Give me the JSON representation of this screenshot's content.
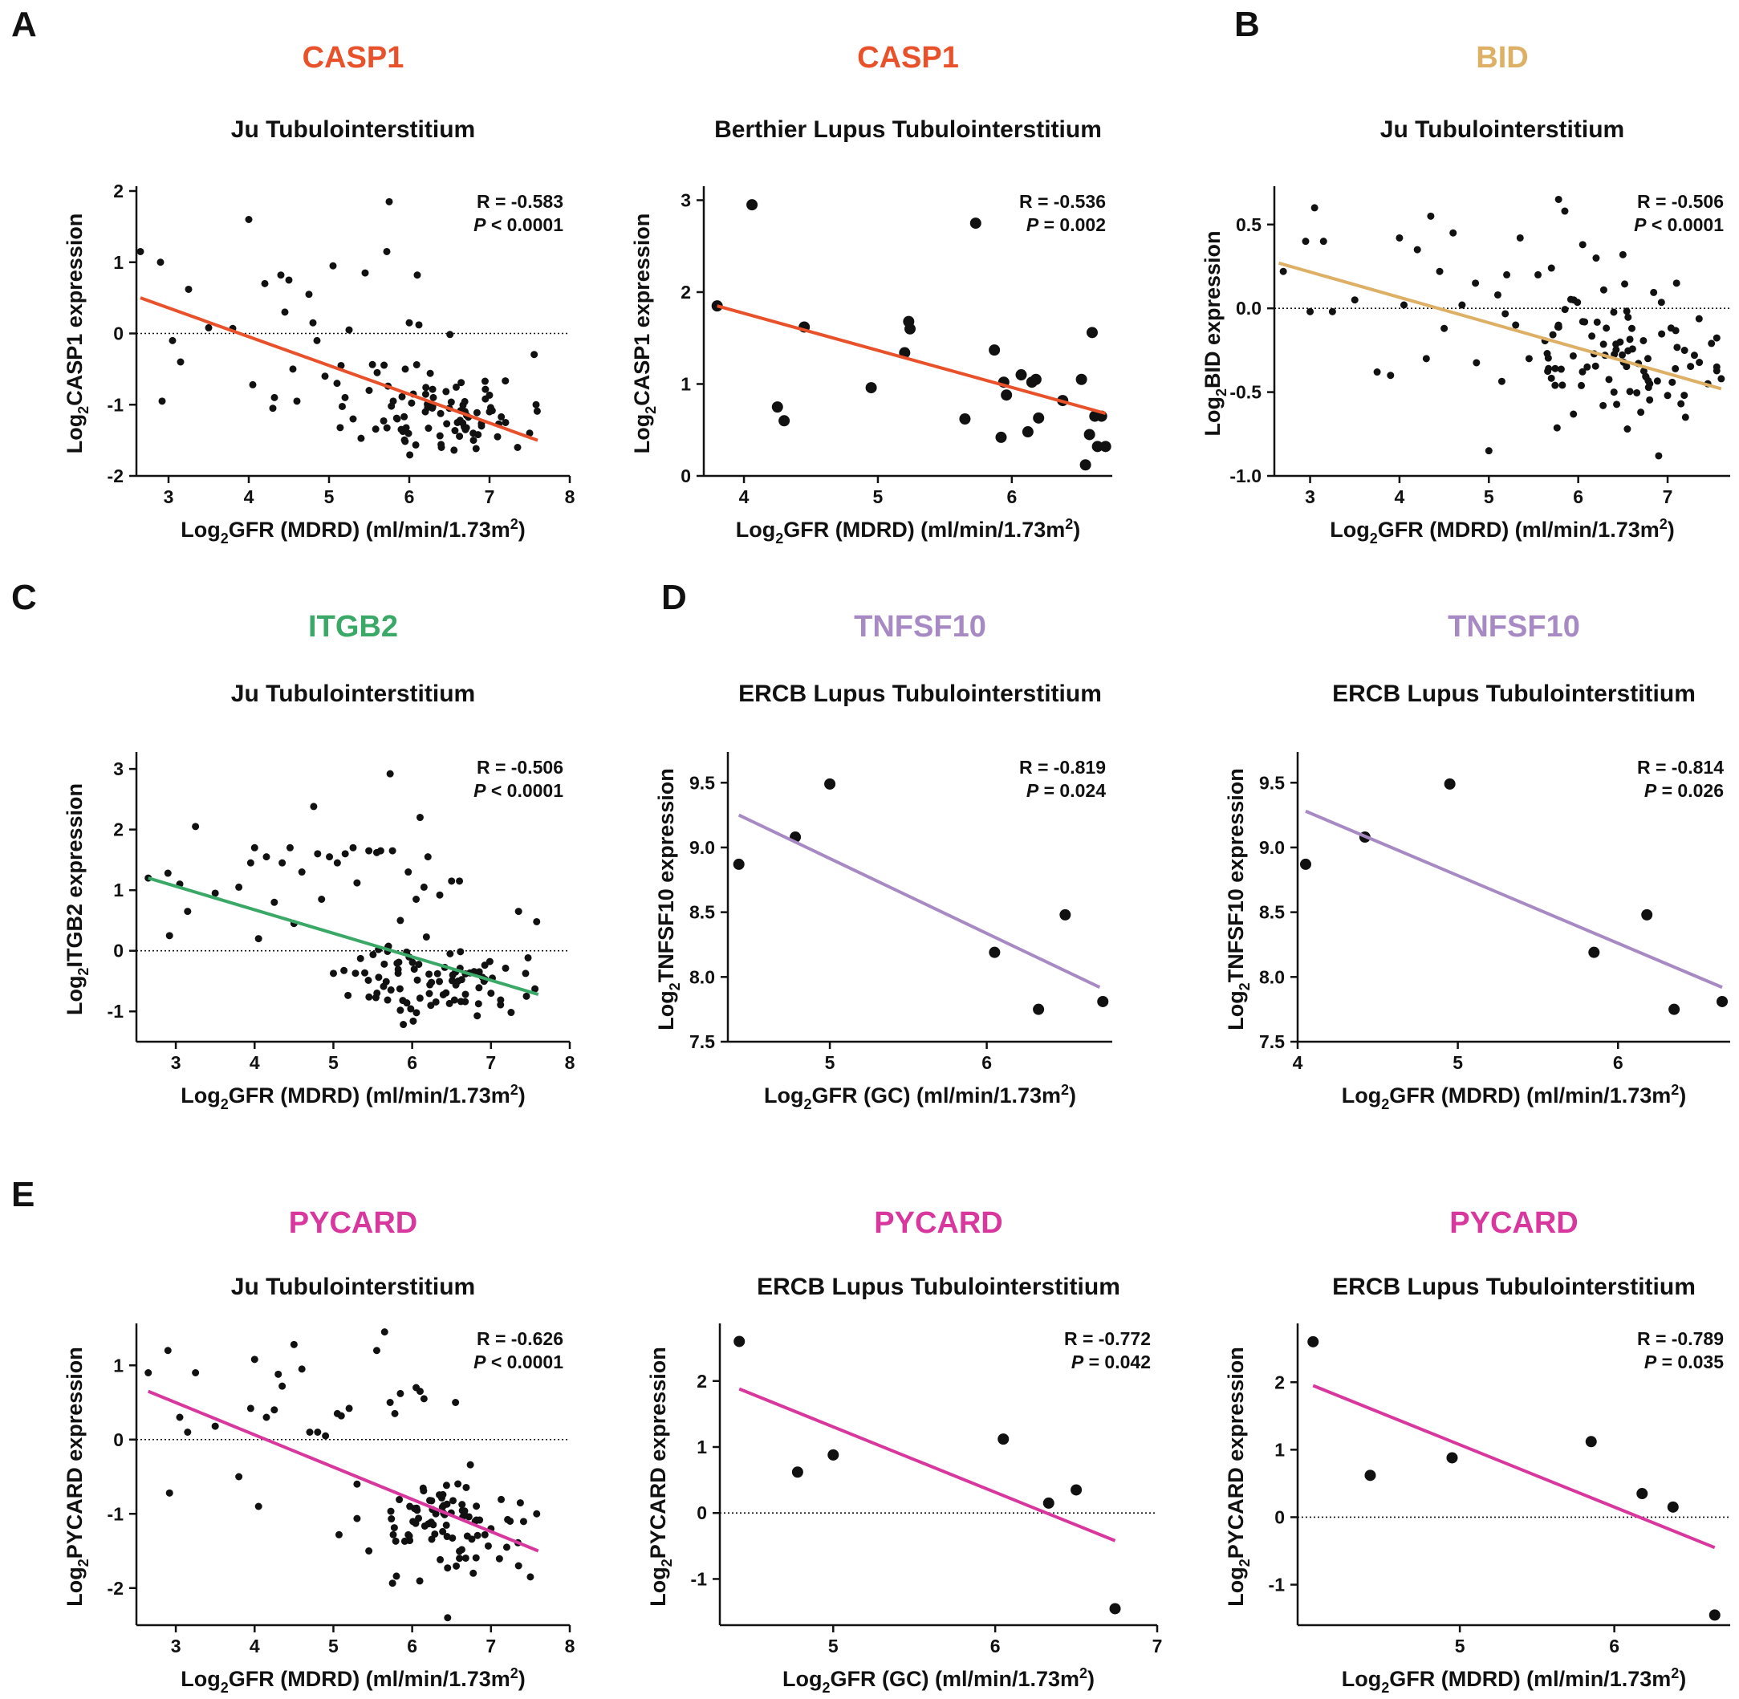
{
  "panel_letters": [
    "A",
    "B",
    "C",
    "D",
    "E"
  ],
  "colors": {
    "CASP1": "#e8512a",
    "BID": "#ddb066",
    "ITGB2": "#3aa866",
    "TNFSF10": "#a78ac4",
    "PYCARD": "#d8389e",
    "points": "#111111",
    "axis": "#111111"
  },
  "chart_data": [
    {
      "type": "scatter",
      "gene": "CASP1",
      "title": "CASP1",
      "subtitle": "Ju Tubulointerstitium",
      "ylabel_pre": "Log",
      "ylabel_sub": "2",
      "ylabel_post": "CASP1 expression",
      "xlabel_pre": "Log",
      "xlabel_sub": "2",
      "xlabel_mid": "GFR (MDRD) (ml/min/1.73m",
      "xlabel_sup": "2",
      "xlabel_post": ")",
      "stat_r": "R = -0.583",
      "stat_p_label": "P",
      "stat_p_value": "< 0.0001",
      "xlim": [
        2.6,
        8.0
      ],
      "ylim": [
        -2,
        2
      ],
      "xticks": [
        3,
        4,
        5,
        6,
        7,
        8
      ],
      "yticks": [
        -2,
        -1,
        0,
        1,
        2
      ],
      "xtick_labels": [
        "3",
        "4",
        "5",
        "6",
        "7",
        "8"
      ],
      "ytick_labels": [
        "-2",
        "-1",
        "0",
        "1",
        "2"
      ],
      "fit": [
        [
          2.65,
          0.5
        ],
        [
          7.6,
          -1.5
        ]
      ],
      "zero_line": true,
      "dense": true,
      "x": [
        2.65,
        2.9,
        2.92,
        3.05,
        3.15,
        3.25,
        3.5,
        3.8,
        4.0,
        4.05,
        4.2,
        4.3,
        4.32,
        4.4,
        4.45,
        4.5,
        4.55,
        4.6,
        4.75,
        4.8,
        4.85,
        4.95,
        5.05,
        5.1,
        5.15,
        5.2,
        5.25,
        5.3,
        5.45,
        5.5,
        5.6,
        5.72,
        5.75,
        5.8,
        5.85,
        5.95,
        6.0,
        6.05,
        6.1,
        6.12,
        6.2,
        6.3,
        6.4,
        6.5,
        6.6,
        6.7,
        6.8,
        6.9,
        7.0,
        7.1,
        7.2,
        7.35,
        7.5,
        7.58
      ],
      "y": [
        1.15,
        1.0,
        -0.95,
        -0.1,
        -0.4,
        0.62,
        0.08,
        0.07,
        1.6,
        -0.72,
        0.7,
        -1.05,
        -0.9,
        0.82,
        0.3,
        0.75,
        -0.5,
        -0.95,
        0.55,
        0.15,
        -0.1,
        -0.6,
        0.95,
        -0.7,
        -0.45,
        -0.9,
        0.05,
        -1.2,
        0.85,
        -0.8,
        -0.55,
        1.15,
        1.85,
        -0.95,
        -1.2,
        -0.5,
        0.15,
        -0.85,
        0.82,
        0.12,
        -1.1,
        -0.9,
        -1.6,
        -1.05,
        -1.25,
        -1.35,
        -1.5,
        -1.3,
        -1.1,
        -1.45,
        -1.25,
        -1.6,
        -1.4,
        -1.0
      ],
      "cluster": {
        "cx": 6.4,
        "cy": -1.05,
        "sx": 0.5,
        "sy": 0.38,
        "n": 70,
        "seed": 11
      }
    },
    {
      "type": "scatter",
      "gene": "CASP1",
      "title": "CASP1",
      "subtitle": "Berthier Lupus Tubulointerstitium",
      "ylabel_pre": "Log",
      "ylabel_sub": "2",
      "ylabel_post": "CASP1 expression",
      "xlabel_pre": "Log",
      "xlabel_sub": "2",
      "xlabel_mid": "GFR (MDRD) (ml/min/1.73m",
      "xlabel_sup": "2",
      "xlabel_post": ")",
      "stat_r": "R = -0.536",
      "stat_p_label": "P",
      "stat_p_value": "= 0.002",
      "xlim": [
        3.7,
        6.75
      ],
      "ylim": [
        0,
        3.1
      ],
      "xticks": [
        4,
        5,
        6
      ],
      "yticks": [
        0,
        1,
        2,
        3
      ],
      "xtick_labels": [
        "4",
        "5",
        "6"
      ],
      "ytick_labels": [
        "0",
        "1",
        "2",
        "3"
      ],
      "fit": [
        [
          3.8,
          1.85
        ],
        [
          6.7,
          0.68
        ]
      ],
      "zero_line": false,
      "dense": false,
      "x": [
        3.8,
        4.06,
        4.25,
        4.3,
        4.45,
        4.95,
        5.2,
        5.23,
        5.24,
        5.65,
        5.73,
        5.87,
        5.92,
        5.94,
        5.96,
        6.07,
        6.12,
        6.15,
        6.18,
        6.2,
        6.38,
        6.52,
        6.55,
        6.58,
        6.6,
        6.62,
        6.64,
        6.67,
        6.7
      ],
      "y": [
        1.85,
        2.95,
        0.75,
        0.6,
        1.62,
        0.96,
        1.34,
        1.68,
        1.6,
        0.62,
        2.75,
        1.37,
        0.42,
        1.02,
        0.88,
        1.1,
        0.48,
        1.02,
        1.05,
        0.63,
        0.82,
        1.05,
        0.12,
        0.45,
        1.56,
        0.65,
        0.32,
        0.65,
        0.32
      ]
    },
    {
      "type": "scatter",
      "gene": "BID",
      "title": "BID",
      "subtitle": "Ju Tubulointerstitium",
      "ylabel_pre": "Log",
      "ylabel_sub": "2",
      "ylabel_post": "BID expression",
      "xlabel_pre": "Log",
      "xlabel_sub": "2",
      "xlabel_mid": "GFR (MDRD) (ml/min/1.73m",
      "xlabel_sup": "2",
      "xlabel_post": ")",
      "stat_r": "R = -0.506",
      "stat_p_label": "P",
      "stat_p_value": "< 0.0001",
      "xlim": [
        2.6,
        7.7
      ],
      "ylim": [
        -1.0,
        0.7
      ],
      "xticks": [
        3,
        4,
        5,
        6,
        7
      ],
      "yticks": [
        -1.0,
        -0.5,
        0.0,
        0.5
      ],
      "xtick_labels": [
        "3",
        "4",
        "5",
        "6",
        "7"
      ],
      "ytick_labels": [
        "-1.0",
        "-0.5",
        "0.0",
        "0.5"
      ],
      "fit": [
        [
          2.65,
          0.27
        ],
        [
          7.6,
          -0.48
        ]
      ],
      "zero_line": true,
      "dense": true,
      "x": [
        2.7,
        2.95,
        3.0,
        3.05,
        3.15,
        3.25,
        3.5,
        3.75,
        3.9,
        4.0,
        4.05,
        4.2,
        4.3,
        4.35,
        4.45,
        4.5,
        4.6,
        4.7,
        4.85,
        5.0,
        5.1,
        5.2,
        5.3,
        5.35,
        5.45,
        5.55,
        5.7,
        5.78,
        5.85,
        5.95,
        6.05,
        6.1,
        6.2,
        6.3,
        6.4,
        6.5,
        6.55,
        6.6,
        6.7,
        6.8,
        6.9,
        7.0,
        7.1,
        7.2,
        7.3,
        7.45,
        7.55,
        7.6
      ],
      "y": [
        0.22,
        0.4,
        -0.02,
        0.6,
        0.4,
        -0.02,
        0.05,
        -0.38,
        -0.4,
        0.42,
        0.02,
        0.35,
        -0.3,
        0.55,
        0.22,
        -0.12,
        0.45,
        0.02,
        0.15,
        -0.85,
        0.08,
        0.2,
        -0.1,
        0.42,
        -0.3,
        0.2,
        0.24,
        0.65,
        0.58,
        0.05,
        0.38,
        -0.35,
        0.3,
        -0.28,
        -0.5,
        0.32,
        -0.72,
        -0.12,
        -0.62,
        -0.45,
        -0.88,
        -0.52,
        0.15,
        -0.65,
        -0.28,
        -0.45,
        -0.35,
        -0.42
      ],
      "cluster": {
        "cx": 6.35,
        "cy": -0.28,
        "sx": 0.55,
        "sy": 0.17,
        "n": 80,
        "seed": 23
      }
    },
    {
      "type": "scatter",
      "gene": "ITGB2",
      "title": "ITGB2",
      "subtitle": "Ju Tubulointerstitium",
      "ylabel_pre": "Log",
      "ylabel_sub": "2",
      "ylabel_post": "ITGB2 expression",
      "xlabel_pre": "Log",
      "xlabel_sub": "2",
      "xlabel_mid": "GFR (MDRD) (ml/min/1.73m",
      "xlabel_sup": "2",
      "xlabel_post": ")",
      "stat_r": "R = -0.506",
      "stat_p_label": "P",
      "stat_p_value": "< 0.0001",
      "xlim": [
        2.5,
        8.0
      ],
      "ylim": [
        -1.5,
        3.2
      ],
      "xticks": [
        3,
        4,
        5,
        6,
        7,
        8
      ],
      "yticks": [
        -1,
        0,
        1,
        2,
        3
      ],
      "xtick_labels": [
        "3",
        "4",
        "5",
        "6",
        "7",
        "8"
      ],
      "ytick_labels": [
        "-1",
        "0",
        "1",
        "2",
        "3"
      ],
      "fit": [
        [
          2.65,
          1.2
        ],
        [
          7.6,
          -0.72
        ]
      ],
      "zero_line": true,
      "dense": true,
      "x": [
        2.65,
        2.9,
        2.92,
        3.05,
        3.15,
        3.25,
        3.5,
        3.8,
        3.95,
        4.0,
        4.05,
        4.15,
        4.25,
        4.35,
        4.45,
        4.5,
        4.6,
        4.75,
        4.8,
        4.85,
        4.95,
        5.05,
        5.15,
        5.25,
        5.3,
        5.45,
        5.55,
        5.6,
        5.72,
        5.75,
        5.85,
        5.95,
        6.05,
        6.1,
        6.15,
        6.2,
        6.35,
        6.5,
        6.55,
        6.6,
        7.0,
        7.35,
        7.45,
        7.58
      ],
      "y": [
        1.2,
        1.28,
        0.25,
        1.1,
        0.65,
        2.05,
        0.95,
        1.05,
        1.45,
        1.7,
        0.2,
        1.55,
        0.8,
        1.45,
        1.7,
        0.45,
        1.3,
        2.38,
        1.6,
        0.85,
        1.55,
        1.45,
        1.6,
        1.7,
        1.12,
        1.65,
        1.62,
        1.65,
        2.92,
        1.65,
        0.5,
        1.3,
        0.85,
        2.2,
        1.05,
        1.55,
        0.92,
        1.15,
        -0.35,
        1.15,
        -0.7,
        0.65,
        -0.75,
        0.48
      ],
      "cluster": {
        "cx": 6.3,
        "cy": -0.5,
        "sx": 0.55,
        "sy": 0.3,
        "n": 85,
        "seed": 37
      }
    },
    {
      "type": "scatter",
      "gene": "TNFSF10",
      "title": "TNFSF10",
      "subtitle": "ERCB Lupus Tubulointerstitium",
      "ylabel_pre": "Log",
      "ylabel_sub": "2",
      "ylabel_post": "TNFSF10 expression",
      "xlabel_pre": "Log",
      "xlabel_sub": "2",
      "xlabel_mid": "GFR (GC) (ml/min/1.73m",
      "xlabel_sup": "2",
      "xlabel_post": ")",
      "stat_r": "R = -0.819",
      "stat_p_label": "P",
      "stat_p_value": "= 0.024",
      "xlim": [
        4.35,
        6.8
      ],
      "ylim": [
        7.5,
        9.7
      ],
      "xticks": [
        5,
        6
      ],
      "yticks": [
        7.5,
        8.0,
        8.5,
        9.0,
        9.5
      ],
      "xtick_labels": [
        "5",
        "6"
      ],
      "ytick_labels": [
        "7.5",
        "8.0",
        "8.5",
        "9.0",
        "9.5"
      ],
      "fit": [
        [
          4.42,
          9.25
        ],
        [
          6.72,
          7.92
        ]
      ],
      "zero_line": false,
      "dense": false,
      "x": [
        4.42,
        4.78,
        5.0,
        6.05,
        6.33,
        6.5,
        6.74
      ],
      "y": [
        8.87,
        9.08,
        9.49,
        8.19,
        7.75,
        8.48,
        7.81
      ]
    },
    {
      "type": "scatter",
      "gene": "TNFSF10",
      "title": "TNFSF10",
      "subtitle": "ERCB Lupus Tubulointerstitium",
      "ylabel_pre": "Log",
      "ylabel_sub": "2",
      "ylabel_post": "TNFSF10 expression",
      "xlabel_pre": "Log",
      "xlabel_sub": "2",
      "xlabel_mid": "GFR (MDRD) (ml/min/1.73m",
      "xlabel_sup": "2",
      "xlabel_post": ")",
      "stat_r": "R = -0.814",
      "stat_p_label": "P",
      "stat_p_value": "= 0.026",
      "xlim": [
        4.0,
        6.7
      ],
      "ylim": [
        7.5,
        9.7
      ],
      "xticks": [
        4,
        5,
        6
      ],
      "yticks": [
        7.5,
        8.0,
        8.5,
        9.0,
        9.5
      ],
      "xtick_labels": [
        "4",
        "5",
        "6"
      ],
      "ytick_labels": [
        "7.5",
        "8.0",
        "8.5",
        "9.0",
        "9.5"
      ],
      "fit": [
        [
          4.05,
          9.28
        ],
        [
          6.65,
          7.92
        ]
      ],
      "zero_line": false,
      "dense": false,
      "x": [
        4.05,
        4.42,
        4.95,
        5.85,
        6.18,
        6.35,
        6.65
      ],
      "y": [
        8.87,
        9.08,
        9.49,
        8.19,
        8.48,
        7.75,
        7.81
      ]
    },
    {
      "type": "scatter",
      "gene": "PYCARD",
      "title": "PYCARD",
      "subtitle": "Ju Tubulointerstitium",
      "ylabel_pre": "Log",
      "ylabel_sub": "2",
      "ylabel_post": "PYCARD expression",
      "xlabel_pre": "Log",
      "xlabel_sub": "2",
      "xlabel_mid": "GFR (MDRD) (ml/min/1.73m",
      "xlabel_sup": "2",
      "xlabel_post": ")",
      "stat_r": "R = -0.626",
      "stat_p_label": "P",
      "stat_p_value": "< 0.0001",
      "xlim": [
        2.5,
        8.0
      ],
      "ylim": [
        -2.5,
        1.5
      ],
      "xticks": [
        3,
        4,
        5,
        6,
        7,
        8
      ],
      "yticks": [
        -2,
        -1,
        0,
        1
      ],
      "xtick_labels": [
        "3",
        "4",
        "5",
        "6",
        "7",
        "8"
      ],
      "ytick_labels": [
        "-2",
        "-1",
        "0",
        "1"
      ],
      "fit": [
        [
          2.65,
          0.65
        ],
        [
          7.6,
          -1.5
        ]
      ],
      "zero_line": true,
      "dense": true,
      "x": [
        2.65,
        2.9,
        2.92,
        3.05,
        3.15,
        3.25,
        3.5,
        3.8,
        3.95,
        4.0,
        4.05,
        4.15,
        4.25,
        4.3,
        4.35,
        4.5,
        4.6,
        4.7,
        4.8,
        4.9,
        5.05,
        5.1,
        5.2,
        5.3,
        5.45,
        5.55,
        5.65,
        5.72,
        5.78,
        5.85,
        6.05,
        6.1,
        6.15,
        6.3,
        6.45,
        6.55,
        6.6,
        6.7,
        6.8,
        7.0,
        7.2,
        7.35,
        7.5,
        7.58
      ],
      "y": [
        0.9,
        1.2,
        -0.72,
        0.3,
        0.1,
        0.9,
        0.18,
        -0.5,
        0.42,
        1.08,
        -0.9,
        0.3,
        0.4,
        0.88,
        0.72,
        1.28,
        0.95,
        0.1,
        0.1,
        0.05,
        0.35,
        0.32,
        0.42,
        -0.6,
        -1.5,
        1.2,
        1.45,
        0.5,
        0.35,
        0.62,
        0.7,
        0.65,
        0.55,
        -1.0,
        -2.4,
        0.5,
        -1.6,
        -1.3,
        -1.1,
        -1.2,
        -1.45,
        -1.7,
        -1.85,
        -1.0
      ],
      "cluster": {
        "cx": 6.4,
        "cy": -1.1,
        "sx": 0.5,
        "sy": 0.35,
        "n": 80,
        "seed": 53
      }
    },
    {
      "type": "scatter",
      "gene": "PYCARD",
      "title": "PYCARD",
      "subtitle": "ERCB Lupus Tubulointerstitium",
      "ylabel_pre": "Log",
      "ylabel_sub": "2",
      "ylabel_post": "PYCARD expression",
      "xlabel_pre": "Log",
      "xlabel_sub": "2",
      "xlabel_mid": "GFR (GC) (ml/min/1.73m",
      "xlabel_sup": "2",
      "xlabel_post": ")",
      "stat_r": "R = -0.772",
      "stat_p_label": "P",
      "stat_p_value": "= 0.042",
      "xlim": [
        4.3,
        7.0
      ],
      "ylim": [
        -1.7,
        2.8
      ],
      "xticks": [
        5,
        6,
        7
      ],
      "yticks": [
        -1,
        0,
        1,
        2
      ],
      "xtick_labels": [
        "5",
        "6",
        "7"
      ],
      "ytick_labels": [
        "-1",
        "0",
        "1",
        "2"
      ],
      "fit": [
        [
          4.42,
          1.88
        ],
        [
          6.74,
          -0.42
        ]
      ],
      "zero_line": true,
      "dense": false,
      "x": [
        4.42,
        4.78,
        5.0,
        6.05,
        6.33,
        6.5,
        6.74
      ],
      "y": [
        2.6,
        0.62,
        0.88,
        1.12,
        0.15,
        0.35,
        -1.45
      ]
    },
    {
      "type": "scatter",
      "gene": "PYCARD",
      "title": "PYCARD",
      "subtitle": "ERCB Lupus Tubulointerstitium",
      "ylabel_pre": "Log",
      "ylabel_sub": "2",
      "ylabel_post": "PYCARD expression",
      "xlabel_pre": "Log",
      "xlabel_sub": "2",
      "xlabel_mid": "GFR (MDRD) (ml/min/1.73m",
      "xlabel_sup": "2",
      "xlabel_post": ")",
      "stat_r": "R = -0.789",
      "stat_p_label": "P",
      "stat_p_value": "= 0.035",
      "xlim": [
        3.95,
        6.75
      ],
      "ylim": [
        -1.6,
        2.8
      ],
      "xticks": [
        5,
        6
      ],
      "yticks": [
        -1,
        0,
        1,
        2
      ],
      "xtick_labels": [
        "5",
        "6"
      ],
      "ytick_labels": [
        "-1",
        "0",
        "1",
        "2"
      ],
      "fit": [
        [
          4.05,
          1.95
        ],
        [
          6.65,
          -0.45
        ]
      ],
      "zero_line": true,
      "dense": false,
      "x": [
        4.05,
        4.42,
        4.95,
        5.85,
        6.18,
        6.38,
        6.65
      ],
      "y": [
        2.6,
        0.62,
        0.88,
        1.12,
        0.35,
        0.15,
        -1.45
      ]
    }
  ]
}
